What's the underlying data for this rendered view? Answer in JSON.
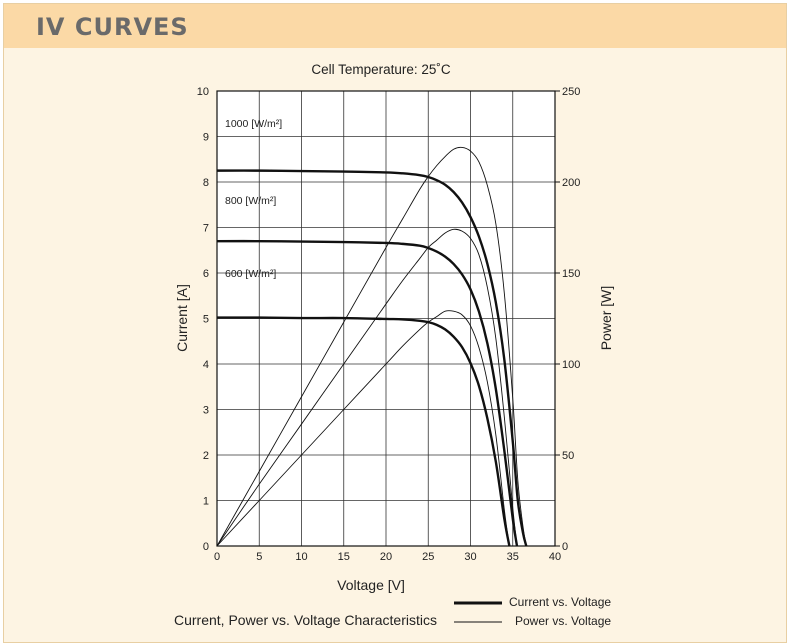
{
  "header": {
    "title": "IV CURVES"
  },
  "chart_data": {
    "type": "line",
    "title": "Cell Temperature:  25˚C",
    "subtitle": "Current, Power vs. Voltage Characteristics",
    "xlabel": "Voltage [V]",
    "ylabel": "Current [A]",
    "y2label": "Power [W]",
    "xlim": [
      0,
      40
    ],
    "ylim": [
      0,
      10
    ],
    "y2lim": [
      0,
      250
    ],
    "xticks": [
      "0",
      "5",
      "10",
      "15",
      "20",
      "25",
      "30",
      "35",
      "40"
    ],
    "yticks": [
      "0",
      "1",
      "2",
      "3",
      "4",
      "5",
      "6",
      "7",
      "8",
      "9",
      "10"
    ],
    "y2ticks": [
      "0",
      "50",
      "100",
      "150",
      "200",
      "250"
    ],
    "grid": true,
    "legend": [
      {
        "label": "Current vs. Voltage",
        "style": "thick"
      },
      {
        "label": "Power vs. Voltage",
        "style": "thin"
      }
    ],
    "irradiance_labels": [
      {
        "text": "1000 [W/m²]",
        "y": 9.3
      },
      {
        "text": "800 [W/m²]",
        "y": 7.6
      },
      {
        "text": "600 [W/m²]",
        "y": 6.0
      }
    ],
    "iv_series": [
      {
        "name": "1000 W/m²",
        "voltage": [
          0,
          5,
          10,
          15,
          20,
          22,
          24,
          25,
          26,
          27,
          28,
          29,
          30,
          31,
          32,
          33,
          34,
          35,
          35.6,
          36.2,
          36.6
        ],
        "current": [
          8.25,
          8.25,
          8.24,
          8.23,
          8.21,
          8.19,
          8.15,
          8.11,
          8.04,
          7.94,
          7.78,
          7.55,
          7.23,
          6.8,
          6.2,
          5.35,
          4.1,
          2.3,
          1.0,
          0.3,
          0
        ]
      },
      {
        "name": "800 W/m²",
        "voltage": [
          0,
          5,
          10,
          15,
          20,
          22,
          24,
          25,
          26,
          27,
          28,
          29,
          30,
          31,
          32,
          33,
          34,
          35,
          35.5
        ],
        "current": [
          6.7,
          6.7,
          6.69,
          6.68,
          6.66,
          6.64,
          6.6,
          6.55,
          6.47,
          6.36,
          6.2,
          5.97,
          5.64,
          5.15,
          4.45,
          3.45,
          2.1,
          0.6,
          0
        ]
      },
      {
        "name": "600 W/m²",
        "voltage": [
          0,
          5,
          10,
          15,
          20,
          22,
          24,
          25,
          26,
          27,
          28,
          29,
          30,
          31,
          32,
          33,
          34,
          34.6
        ],
        "current": [
          5.02,
          5.02,
          5.01,
          5.01,
          4.99,
          4.98,
          4.95,
          4.92,
          4.86,
          4.76,
          4.6,
          4.37,
          4.02,
          3.52,
          2.8,
          1.85,
          0.6,
          0
        ]
      }
    ],
    "pv_series": [
      {
        "name": "1000 W/m²",
        "voltage": [
          0,
          5,
          10,
          15,
          20,
          22,
          24,
          25,
          26,
          27,
          28,
          29,
          30,
          31,
          32,
          33,
          34,
          35,
          35.6,
          36.2,
          36.6
        ],
        "power": [
          0,
          41,
          82,
          123,
          164,
          180,
          196,
          203,
          209,
          214,
          218,
          219,
          217,
          211,
          198,
          177,
          139,
          81,
          36,
          11,
          0
        ]
      },
      {
        "name": "800 W/m²",
        "voltage": [
          0,
          5,
          10,
          15,
          20,
          22,
          24,
          25,
          26,
          27,
          28,
          29,
          30,
          31,
          32,
          33,
          34,
          35,
          35.5
        ],
        "power": [
          0,
          34,
          67,
          100,
          133,
          146,
          158,
          164,
          168,
          172,
          174,
          173,
          169,
          160,
          142,
          114,
          71,
          21,
          0
        ]
      },
      {
        "name": "600 W/m²",
        "voltage": [
          0,
          5,
          10,
          15,
          20,
          22,
          24,
          25,
          26,
          27,
          28,
          29,
          30,
          31,
          32,
          33,
          34,
          34.6
        ],
        "power": [
          0,
          25,
          50,
          75,
          100,
          110,
          119,
          123,
          126,
          129,
          129,
          127,
          121,
          109,
          90,
          61,
          20,
          0
        ]
      }
    ]
  }
}
